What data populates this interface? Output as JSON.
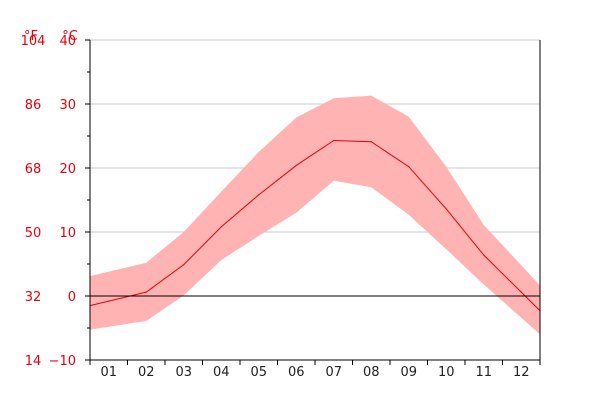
{
  "chart_data": {
    "type": "area",
    "title": "",
    "units": {
      "fahrenheit": "°F",
      "celsius": "°C"
    },
    "categories": [
      "01",
      "02",
      "03",
      "04",
      "05",
      "06",
      "07",
      "08",
      "09",
      "10",
      "11",
      "12"
    ],
    "y_ticks_c": [
      "40",
      "30",
      "20",
      "10",
      "0",
      "−10"
    ],
    "y_ticks_f": [
      "104",
      "86",
      "68",
      "50",
      "32",
      "14"
    ],
    "ylim": [
      -10,
      40
    ],
    "grid": true,
    "series": [
      {
        "role": "mean",
        "values": [
          -0.8,
          0.6,
          4.9,
          10.8,
          15.8,
          20.4,
          24.3,
          24.1,
          20.2,
          13.6,
          6.4,
          0.6
        ]
      },
      {
        "role": "max",
        "values": [
          3.8,
          5.2,
          10.0,
          16.3,
          22.5,
          27.9,
          30.9,
          31.3,
          28.0,
          20.2,
          11.1,
          4.8
        ]
      },
      {
        "role": "min",
        "values": [
          -4.8,
          -3.9,
          0.1,
          5.6,
          9.4,
          13.0,
          18.0,
          17.0,
          12.7,
          7.3,
          1.8,
          -3.4
        ]
      }
    ],
    "colors": {
      "band": "#ffb3b3",
      "mean_line": "#e8000b",
      "tick_red": "#e8000b",
      "zero_line": "#000000",
      "grid": "#c8c8c8"
    }
  }
}
